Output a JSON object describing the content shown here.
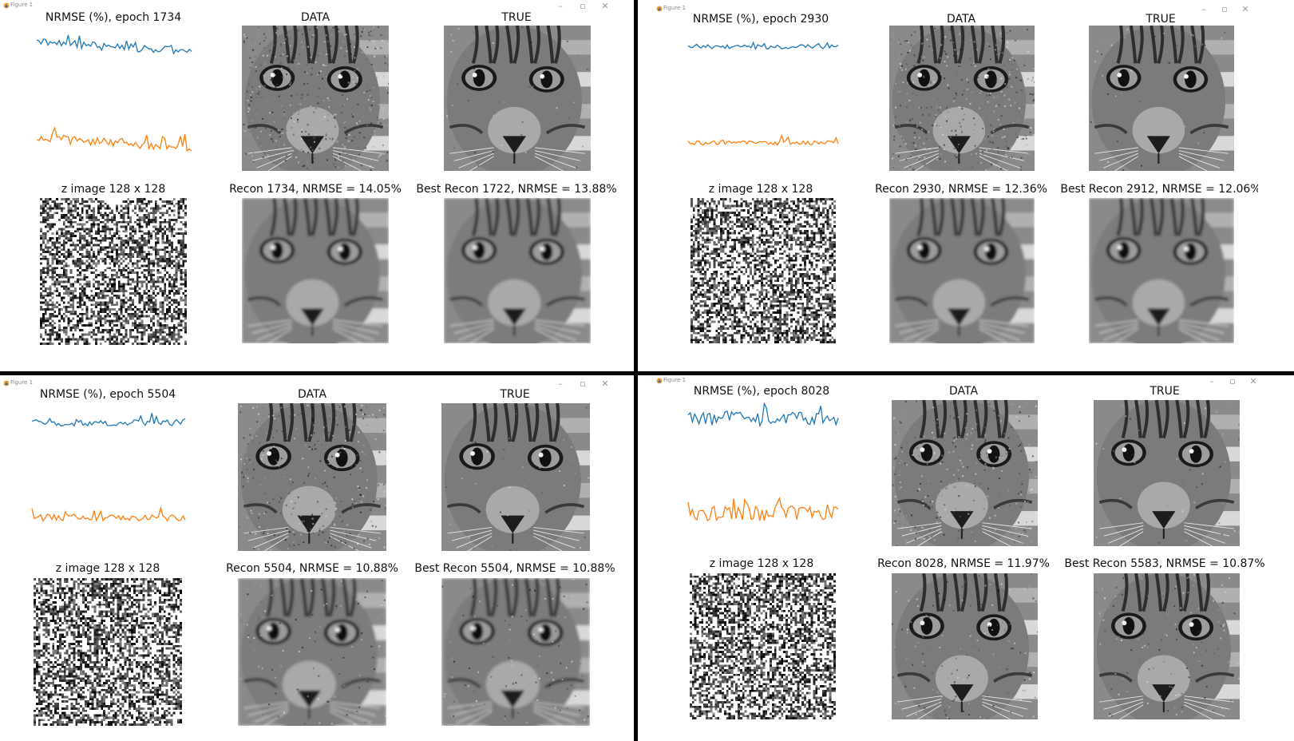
{
  "window": {
    "title": "Figure 1",
    "minimize_label": "–",
    "maximize_label": "▫",
    "close_label": "✕"
  },
  "icons": {
    "app": "matplotlib-figure-icon",
    "minimize": "minimize-icon",
    "maximize": "maximize-icon",
    "close": "close-icon"
  },
  "colors": {
    "series_blue": "#1f77b4",
    "series_orange": "#ff7f0e",
    "divider": "#000000"
  },
  "figures": [
    {
      "loss_title": "NRMSE (%), epoch 1734",
      "data_title": "DATA",
      "true_title": "TRUE",
      "z_title": "z image 128 x 128",
      "recon_title": "Recon 1734, NRMSE = 14.05%",
      "best_title": "Best Recon 1722, NRMSE = 13.88%"
    },
    {
      "loss_title": "NRMSE (%), epoch 2930",
      "data_title": "DATA",
      "true_title": "TRUE",
      "z_title": "z image 128 x 128",
      "recon_title": "Recon 2930, NRMSE = 12.36%",
      "best_title": "Best Recon 2912, NRMSE = 12.06%"
    },
    {
      "loss_title": "NRMSE (%), epoch 5504",
      "data_title": "DATA",
      "true_title": "TRUE",
      "z_title": "z image 128 x 128",
      "recon_title": "Recon 5504, NRMSE = 10.88%",
      "best_title": "Best Recon 5504, NRMSE = 10.88%"
    },
    {
      "loss_title": "NRMSE (%), epoch 8028",
      "data_title": "DATA",
      "true_title": "TRUE",
      "z_title": "z image 128 x 128",
      "recon_title": "Recon 8028, NRMSE = 11.97%",
      "best_title": "Best Recon 5583, NRMSE = 10.87%"
    }
  ]
}
